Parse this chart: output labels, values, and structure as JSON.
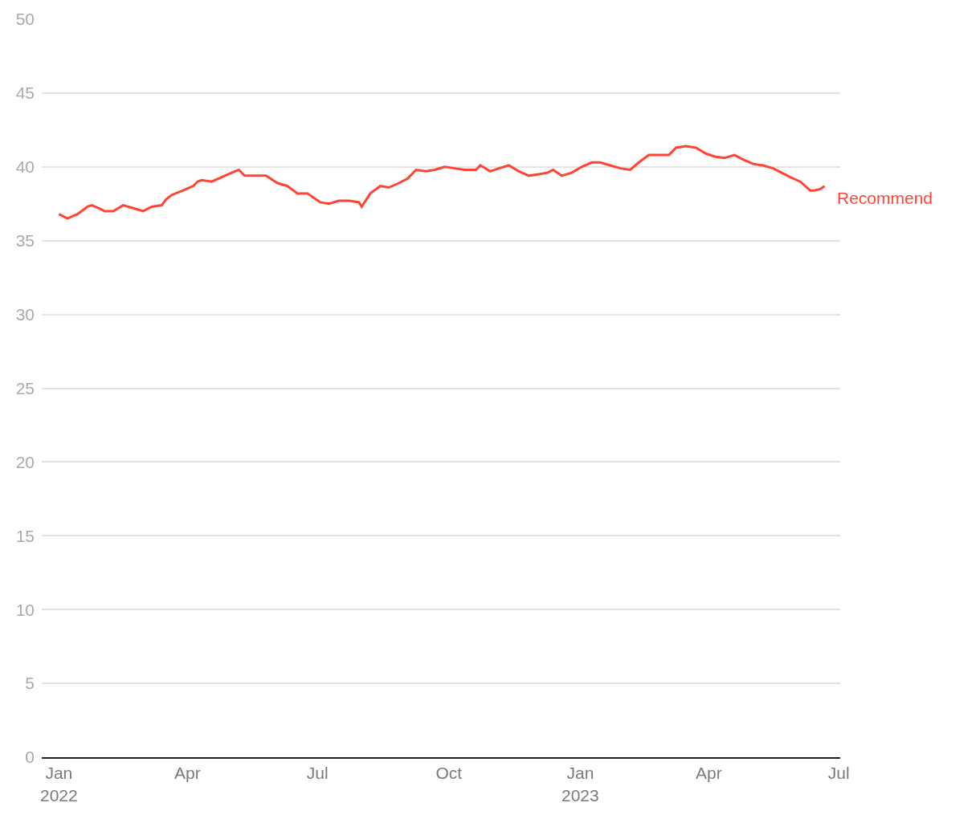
{
  "chart_data": {
    "type": "line",
    "x": [
      "2022-01-01",
      "2022-01-07",
      "2022-01-14",
      "2022-01-21",
      "2022-01-24",
      "2022-01-29",
      "2022-02-02",
      "2022-02-08",
      "2022-02-15",
      "2022-02-22",
      "2022-03-01",
      "2022-03-07",
      "2022-03-14",
      "2022-03-17",
      "2022-03-21",
      "2022-03-29",
      "2022-04-05",
      "2022-04-08",
      "2022-04-11",
      "2022-04-18",
      "2022-04-25",
      "2022-05-02",
      "2022-05-07",
      "2022-05-11",
      "2022-05-18",
      "2022-05-26",
      "2022-06-03",
      "2022-06-10",
      "2022-06-17",
      "2022-06-24",
      "2022-06-30",
      "2022-07-03",
      "2022-07-09",
      "2022-07-16",
      "2022-07-23",
      "2022-07-30",
      "2022-08-01",
      "2022-08-07",
      "2022-08-14",
      "2022-08-20",
      "2022-08-27",
      "2022-09-02",
      "2022-09-08",
      "2022-09-15",
      "2022-09-21",
      "2022-09-28",
      "2022-10-05",
      "2022-10-12",
      "2022-10-20",
      "2022-10-23",
      "2022-10-30",
      "2022-11-05",
      "2022-11-12",
      "2022-11-19",
      "2022-11-26",
      "2022-12-03",
      "2022-12-09",
      "2022-12-13",
      "2022-12-19",
      "2022-12-26",
      "2023-01-02",
      "2023-01-09",
      "2023-01-15",
      "2023-01-22",
      "2023-01-29",
      "2023-02-05",
      "2023-02-11",
      "2023-02-18",
      "2023-02-25",
      "2023-03-04",
      "2023-03-09",
      "2023-03-16",
      "2023-03-23",
      "2023-03-30",
      "2023-04-05",
      "2023-04-12",
      "2023-04-19",
      "2023-04-25",
      "2023-05-02",
      "2023-05-09",
      "2023-05-16",
      "2023-05-22",
      "2023-05-28",
      "2023-06-04",
      "2023-06-11",
      "2023-06-14",
      "2023-06-18",
      "2023-06-21"
    ],
    "series": [
      {
        "name": "Recommend",
        "color": "#ff4433",
        "values": [
          36.8,
          36.5,
          36.8,
          37.3,
          37.4,
          37.2,
          37.0,
          37.0,
          37.4,
          37.2,
          37.0,
          37.3,
          37.4,
          37.8,
          38.1,
          38.4,
          38.7,
          39.0,
          39.1,
          39.0,
          39.3,
          39.6,
          39.8,
          39.4,
          39.4,
          39.4,
          38.9,
          38.7,
          38.2,
          38.2,
          37.8,
          37.6,
          37.5,
          37.7,
          37.7,
          37.6,
          37.3,
          38.2,
          38.7,
          38.6,
          38.9,
          39.2,
          39.8,
          39.7,
          39.8,
          40.0,
          39.9,
          39.8,
          39.8,
          40.1,
          39.7,
          39.9,
          40.1,
          39.7,
          39.4,
          39.5,
          39.6,
          39.8,
          39.4,
          39.6,
          40.0,
          40.3,
          40.3,
          40.1,
          39.9,
          39.8,
          40.3,
          40.8,
          40.8,
          40.8,
          41.3,
          41.4,
          41.3,
          40.9,
          40.7,
          40.6,
          40.8,
          40.5,
          40.2,
          40.1,
          39.9,
          39.6,
          39.3,
          39.0,
          38.4,
          38.4,
          38.5,
          38.7
        ]
      }
    ],
    "xlim": [
      "2021-12-20",
      "2023-07-02"
    ],
    "xticks": [
      {
        "value": "2022-01-01",
        "label": "Jan\n2022"
      },
      {
        "value": "2022-04-01",
        "label": "Apr"
      },
      {
        "value": "2022-07-01",
        "label": "Jul"
      },
      {
        "value": "2022-10-01",
        "label": "Oct"
      },
      {
        "value": "2023-01-01",
        "label": "Jan\n2023"
      },
      {
        "value": "2023-04-01",
        "label": "Apr"
      },
      {
        "value": "2023-07-01",
        "label": "Jul"
      }
    ],
    "ylim": [
      0,
      50
    ],
    "yticks": [
      0,
      5,
      10,
      15,
      20,
      25,
      30,
      35,
      40,
      45,
      50
    ],
    "grid": "y",
    "legend": false,
    "line_style": "solid"
  }
}
